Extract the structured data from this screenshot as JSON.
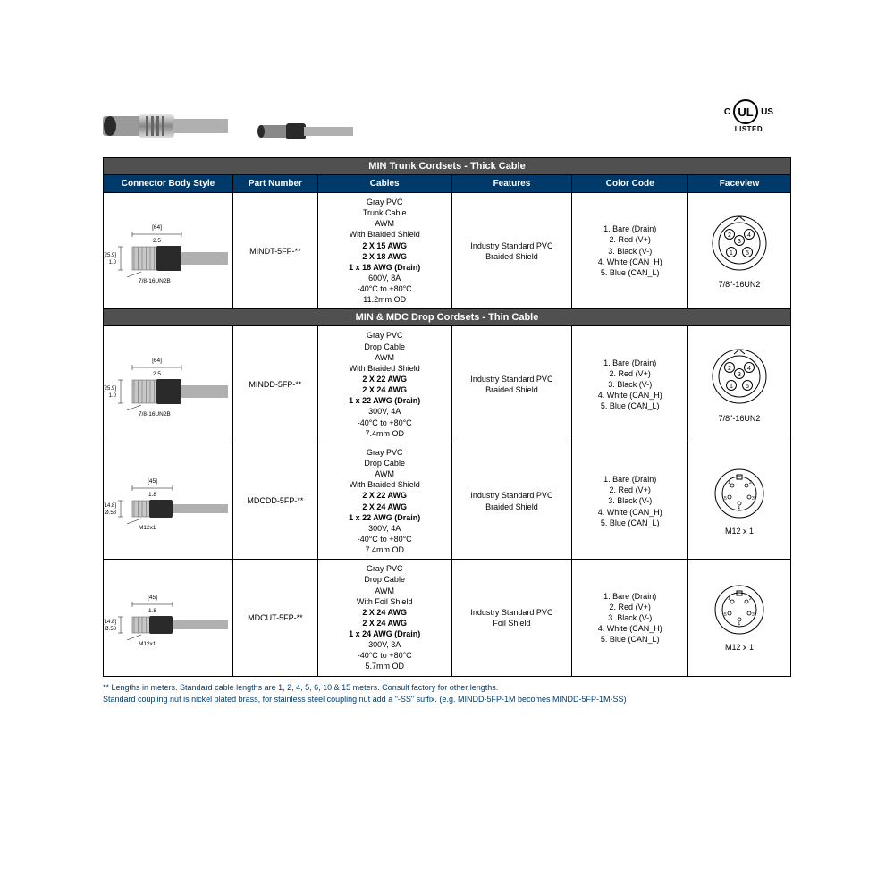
{
  "certification": {
    "left": "C",
    "right": "US",
    "bottom": "LISTED"
  },
  "columns": [
    "Connector Body Style",
    "Part Number",
    "Cables",
    "Features",
    "Color Code",
    "Faceview"
  ],
  "section1_title": "MIN Trunk Cordsets - Thick Cable",
  "section2_title": "MIN & MDC Drop Cordsets - Thin Cable",
  "rows": [
    {
      "body_dim_top": "[64]",
      "body_dim_top2": "2.5",
      "body_dim_left": "[25.9]",
      "body_dim_left2": "1.0",
      "body_thread": "7/8-16UN2B",
      "part": "MINDT-5FP-**",
      "cables": [
        "Gray PVC",
        "Trunk Cable",
        "AWM",
        "With Braided Shield"
      ],
      "cables_bold": [
        "2 X 15 AWG",
        "2 X 18 AWG",
        "1 x 18 AWG (Drain)"
      ],
      "cables_after": [
        "600V, 8A",
        "-40°C to +80°C",
        "11.2mm OD"
      ],
      "features": [
        "Industry Standard PVC",
        "Braided Shield"
      ],
      "colors": [
        "1. Bare (Drain)",
        "2. Red (V+)",
        "3. Black (V-)",
        "4. White (CAN_H)",
        "5. Blue (CAN_L)"
      ],
      "faceview_label": "7/8\"-16UN2",
      "faceview_type": "5pin-large"
    },
    {
      "body_dim_top": "[64]",
      "body_dim_top2": "2.5",
      "body_dim_left": "[25.9]",
      "body_dim_left2": "1.0",
      "body_thread": "7/8-16UN2B",
      "part": "MINDD-5FP-**",
      "cables": [
        "Gray PVC",
        "Drop Cable",
        "AWM",
        "With Braided Shield"
      ],
      "cables_bold": [
        "2 X 22 AWG",
        "2 X 24 AWG",
        "1 x 22 AWG (Drain)"
      ],
      "cables_after": [
        "300V, 4A",
        "-40°C to +80°C",
        "7.4mm OD"
      ],
      "features": [
        "Industry Standard PVC",
        "Braided Shield"
      ],
      "colors": [
        "1. Bare (Drain)",
        "2. Red (V+)",
        "3. Black (V-)",
        "4. White (CAN_H)",
        "5. Blue (CAN_L)"
      ],
      "faceview_label": "7/8\"-16UN2",
      "faceview_type": "5pin-large"
    },
    {
      "body_dim_top": "[45]",
      "body_dim_top2": "1.8",
      "body_dim_left": "[14.8]",
      "body_dim_left2": "Ø.58",
      "body_thread": "M12x1",
      "part": "MDCDD-5FP-**",
      "cables": [
        "Gray PVC",
        "Drop Cable",
        "AWM",
        "With Braided Shield"
      ],
      "cables_bold": [
        "2 X 22 AWG",
        "2 X 24 AWG",
        "1 x 22 AWG (Drain)"
      ],
      "cables_after": [
        "300V, 4A",
        "-40°C to +80°C",
        "7.4mm OD"
      ],
      "features": [
        "Industry Standard PVC",
        "Braided Shield"
      ],
      "colors": [
        "1. Bare (Drain)",
        "2. Red (V+)",
        "3. Black (V-)",
        "4. White (CAN_H)",
        "5. Blue (CAN_L)"
      ],
      "faceview_label": "M12 x 1",
      "faceview_type": "5pin-small"
    },
    {
      "body_dim_top": "[45]",
      "body_dim_top2": "1.8",
      "body_dim_left": "[14.8]",
      "body_dim_left2": "Ø.58",
      "body_thread": "M12x1",
      "part": "MDCUT-5FP-**",
      "cables": [
        "Gray PVC",
        "Drop Cable",
        "AWM",
        "With Foil Shield"
      ],
      "cables_bold": [
        "2 X 24 AWG",
        "2 X 24 AWG",
        "1 x 24 AWG (Drain)"
      ],
      "cables_after": [
        "300V, 3A",
        "-40°C to +80°C",
        "5.7mm OD"
      ],
      "features": [
        "Industry Standard PVC",
        "Foil Shield"
      ],
      "colors": [
        "1. Bare (Drain)",
        "2. Red (V+)",
        "3. Black (V-)",
        "4. White (CAN_H)",
        "5. Blue (CAN_L)"
      ],
      "faceview_label": "M12 x 1",
      "faceview_type": "5pin-small"
    }
  ],
  "footnote1": "** Lengths in meters.  Standard cable lengths are 1, 2, 4, 5, 6, 10 & 15 meters. Consult factory for other lengths.",
  "footnote2": "Standard coupling nut is nickel plated brass, for stainless steel coupling nut add a \"-SS\" suffix. (e.g. MINDD-5FP-1M becomes MINDD-5FP-1M-SS)"
}
